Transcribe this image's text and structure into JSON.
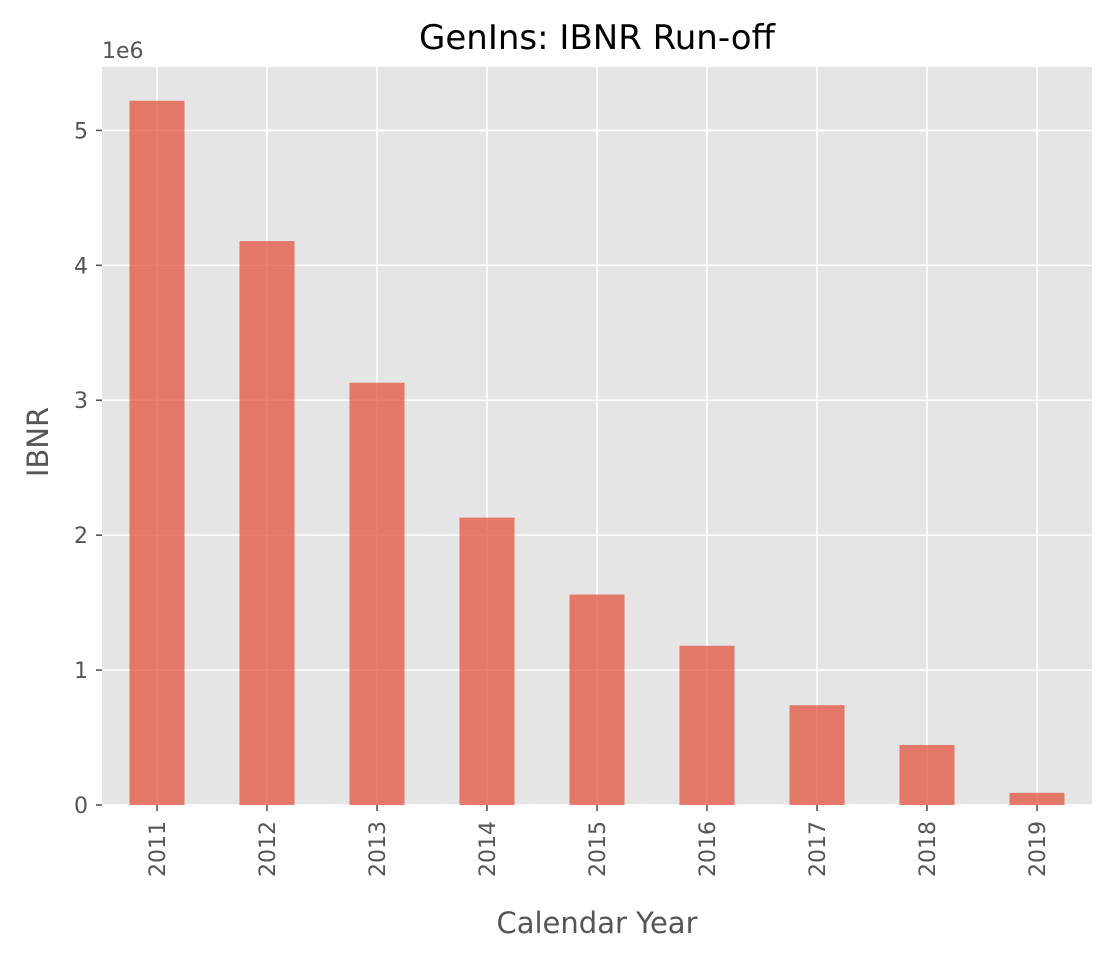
{
  "chart_data": {
    "type": "bar",
    "title": "GenIns: IBNR Run-off",
    "xlabel": "Calendar Year",
    "ylabel": "IBNR",
    "y_multiplier_label": "1e6",
    "categories": [
      "2011",
      "2012",
      "2013",
      "2014",
      "2015",
      "2016",
      "2017",
      "2018",
      "2019"
    ],
    "values": [
      5220000,
      4180000,
      3130000,
      2130000,
      1560000,
      1180000,
      740000,
      445000,
      90000
    ],
    "ylim": [
      0,
      5470000
    ],
    "yticks": [
      0,
      1000000,
      2000000,
      3000000,
      4000000,
      5000000
    ],
    "ytick_labels": [
      "0",
      "1",
      "2",
      "3",
      "4",
      "5"
    ],
    "grid": true,
    "bar_color": "#E24A33",
    "background_color": "#E5E5E5",
    "grid_color": "#FFFFFF"
  }
}
